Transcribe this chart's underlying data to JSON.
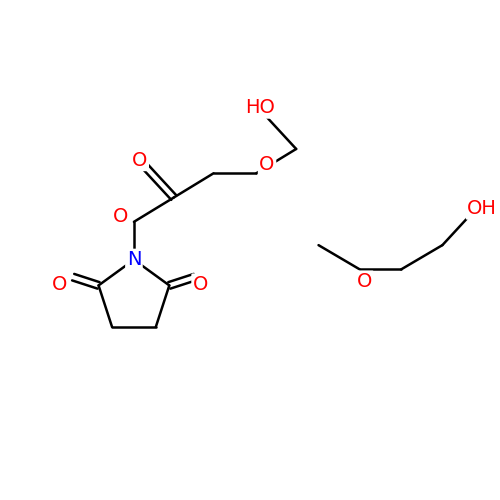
{
  "bg_color": "#ffffff",
  "bond_color": "#000000",
  "atom_colors": {
    "O": "#ff0000",
    "N": "#0000ff"
  },
  "bond_width": 1.8,
  "font_size": 14,
  "fig_size": [
    5.0,
    5.0
  ],
  "dpi": 100,
  "xlim": [
    0,
    10
  ],
  "ylim": [
    0,
    10
  ]
}
